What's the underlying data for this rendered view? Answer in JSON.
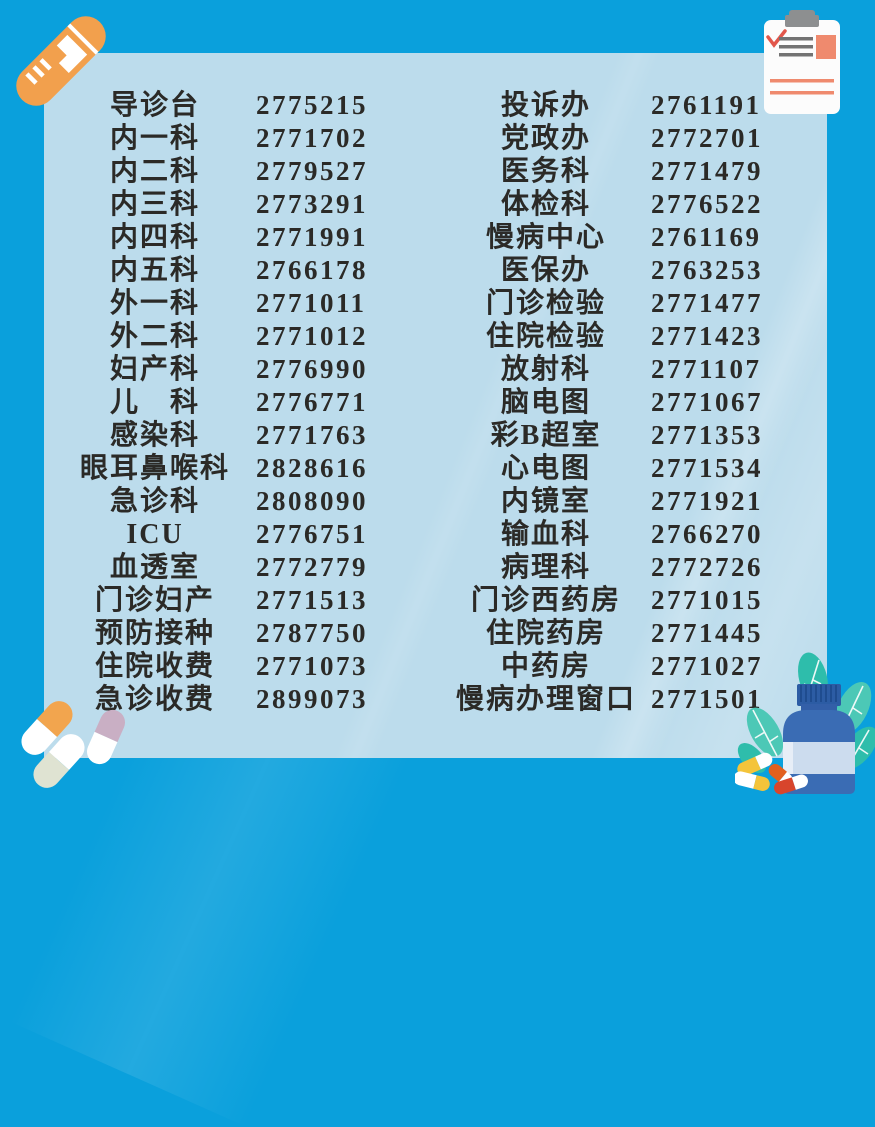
{
  "directory": {
    "row_count": 19,
    "left": [
      {
        "label": "导诊台",
        "number": "2775215"
      },
      {
        "label": "内一科",
        "number": "2771702"
      },
      {
        "label": "内二科",
        "number": "2779527"
      },
      {
        "label": "内三科",
        "number": "2773291"
      },
      {
        "label": "内四科",
        "number": "2771991"
      },
      {
        "label": "内五科",
        "number": "2766178"
      },
      {
        "label": "外一科",
        "number": "2771011"
      },
      {
        "label": "外二科",
        "number": "2771012"
      },
      {
        "label": "妇产科",
        "number": "2776990"
      },
      {
        "label": "儿　科",
        "number": "2776771"
      },
      {
        "label": "感染科",
        "number": "2771763"
      },
      {
        "label": "眼耳鼻喉科",
        "number": "2828616"
      },
      {
        "label": "急诊科",
        "number": "2808090"
      },
      {
        "label": "ICU",
        "number": "2776751"
      },
      {
        "label": "血透室",
        "number": "2772779"
      },
      {
        "label": "门诊妇产",
        "number": "2771513"
      },
      {
        "label": "预防接种",
        "number": "2787750"
      },
      {
        "label": "住院收费",
        "number": "2771073"
      },
      {
        "label": "急诊收费",
        "number": "2899073"
      }
    ],
    "right": [
      {
        "label": "投诉办",
        "number": "2761191"
      },
      {
        "label": "党政办",
        "number": "2772701"
      },
      {
        "label": "医务科",
        "number": "2771479"
      },
      {
        "label": "体检科",
        "number": "2776522"
      },
      {
        "label": "慢病中心",
        "number": "2761169"
      },
      {
        "label": "医保办",
        "number": "2763253"
      },
      {
        "label": "门诊检验",
        "number": "2771477"
      },
      {
        "label": "住院检验",
        "number": "2771423"
      },
      {
        "label": "放射科",
        "number": "2771107"
      },
      {
        "label": "脑电图",
        "number": "2771067"
      },
      {
        "label": "彩B超室",
        "number": "2771353"
      },
      {
        "label": "心电图",
        "number": "2771534"
      },
      {
        "label": "内镜室",
        "number": "2771921"
      },
      {
        "label": "输血科",
        "number": "2766270"
      },
      {
        "label": "病理科",
        "number": "2772726"
      },
      {
        "label": "门诊西药房",
        "number": "2771015"
      },
      {
        "label": "住院药房",
        "number": "2771445"
      },
      {
        "label": "中药房",
        "number": "2771027"
      },
      {
        "label": "慢病办理窗口",
        "number": "2771501"
      }
    ]
  },
  "decorations": {
    "top_left_icon": "test-tube",
    "top_right_icon": "clipboard-checklist",
    "bottom_left_icon": "capsule-pills",
    "bottom_right_icon": "medicine-bottle-with-leaves"
  },
  "colors": {
    "background_blue": "#0aa0dc",
    "panel_light_blue": "#bcdcec",
    "text_dark": "#2b2a27",
    "test_tube_orange": "#f2a04d",
    "clipboard_salmon": "#ef8a6e",
    "clipboard_gray": "#8d8f90",
    "leaf_teal": "#2ebdab",
    "bottle_blue": "#3a6cb4"
  }
}
